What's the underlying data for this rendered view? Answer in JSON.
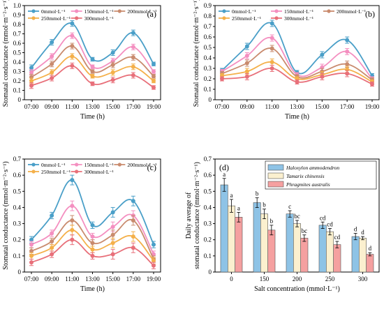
{
  "chart_data": [
    {
      "type": "line",
      "panel_label": "(a)",
      "xlabel": "Time (h)",
      "ylabel": "Stomatal conductance (mmol·m⁻²·s⁻¹)",
      "categories": [
        "07:00",
        "09:00",
        "11:00",
        "13:00",
        "15:00",
        "17:00",
        "19:00"
      ],
      "ylim": [
        0,
        1.0
      ],
      "yticks": [
        "0",
        "0.1",
        "0.2",
        "0.3",
        "0.4",
        "0.5",
        "0.6",
        "0.7",
        "0.8",
        "0.9",
        "1.0"
      ],
      "series": [
        {
          "name": "0mmol·L⁻¹",
          "color": "#4a9fc8",
          "values": [
            0.34,
            0.61,
            0.81,
            0.43,
            0.5,
            0.71,
            0.38
          ]
        },
        {
          "name": "150mmol·L⁻¹",
          "color": "#f48fc0",
          "values": [
            0.29,
            0.46,
            0.68,
            0.35,
            0.41,
            0.56,
            0.3
          ]
        },
        {
          "name": "200mmol·L⁻¹",
          "color": "#c98b6e",
          "values": [
            0.24,
            0.38,
            0.57,
            0.3,
            0.37,
            0.45,
            0.25
          ]
        },
        {
          "name": "250mmol·L⁻¹",
          "color": "#f4b04a",
          "values": [
            0.2,
            0.29,
            0.46,
            0.25,
            0.29,
            0.35,
            0.2
          ]
        },
        {
          "name": "300mmol·L⁻¹",
          "color": "#e8707a",
          "values": [
            0.15,
            0.23,
            0.36,
            0.17,
            0.21,
            0.26,
            0.13
          ]
        }
      ],
      "errors": [
        0.03,
        0.03,
        0.03,
        0.02,
        0.03,
        0.03,
        0.02
      ]
    },
    {
      "type": "line",
      "panel_label": "(b)",
      "xlabel": "Time (h)",
      "ylabel": "Stomatal conductance (mmol·m⁻²·s⁻¹)",
      "categories": [
        "07:00",
        "09:00",
        "11:00",
        "13:00",
        "15:00",
        "17:00",
        "19:00"
      ],
      "ylim": [
        0,
        0.9
      ],
      "yticks": [
        "0",
        "0.1",
        "0.2",
        "0.3",
        "0.4",
        "0.5",
        "0.6",
        "0.7",
        "0.8",
        "0.9"
      ],
      "series": [
        {
          "name": "0mmol·L⁻¹",
          "color": "#4a9fc8",
          "values": [
            0.28,
            0.51,
            0.73,
            0.26,
            0.43,
            0.57,
            0.23
          ]
        },
        {
          "name": "150mmol·L⁻¹",
          "color": "#f48fc0",
          "values": [
            0.27,
            0.42,
            0.59,
            0.24,
            0.31,
            0.46,
            0.2
          ]
        },
        {
          "name": "200mmol·L⁻¹",
          "color": "#c98b6e",
          "values": [
            0.25,
            0.35,
            0.49,
            0.22,
            0.27,
            0.34,
            0.19
          ]
        },
        {
          "name": "250mmol·L⁻¹",
          "color": "#f4b04a",
          "values": [
            0.23,
            0.27,
            0.36,
            0.2,
            0.24,
            0.29,
            0.17
          ]
        },
        {
          "name": "300mmol·L⁻¹",
          "color": "#e8707a",
          "values": [
            0.2,
            0.22,
            0.3,
            0.17,
            0.22,
            0.25,
            0.15
          ]
        }
      ],
      "errors": [
        0.02,
        0.03,
        0.03,
        0.02,
        0.03,
        0.03,
        0.02
      ]
    },
    {
      "type": "line",
      "panel_label": "(c)",
      "xlabel": "Time (h)",
      "ylabel": "Stomatal conductance (mmol·m⁻²·s⁻¹)",
      "categories": [
        "07:00",
        "09:00",
        "11:00",
        "13:00",
        "15:00",
        "17:00",
        "19:00"
      ],
      "ylim": [
        0,
        0.7
      ],
      "yticks": [
        "0",
        "0.1",
        "0.2",
        "0.3",
        "0.4",
        "0.5",
        "0.6",
        "0.7"
      ],
      "series": [
        {
          "name": "0mmol·L⁻¹",
          "color": "#4a9fc8",
          "values": [
            0.2,
            0.35,
            0.57,
            0.29,
            0.37,
            0.44,
            0.17
          ]
        },
        {
          "name": "150mmol·L⁻¹",
          "color": "#f48fc0",
          "values": [
            0.17,
            0.24,
            0.41,
            0.22,
            0.28,
            0.35,
            0.11
          ]
        },
        {
          "name": "200mmol·L⁻¹",
          "color": "#c98b6e",
          "values": [
            0.13,
            0.19,
            0.32,
            0.18,
            0.23,
            0.32,
            0.08
          ]
        },
        {
          "name": "250mmol·L⁻¹",
          "color": "#f4b04a",
          "values": [
            0.1,
            0.15,
            0.26,
            0.14,
            0.18,
            0.22,
            0.07
          ]
        },
        {
          "name": "300mmol·L⁻¹",
          "color": "#e8707a",
          "values": [
            0.06,
            0.11,
            0.2,
            0.1,
            0.11,
            0.15,
            0.04
          ]
        }
      ],
      "errors": [
        0.02,
        0.02,
        0.03,
        0.02,
        0.03,
        0.03,
        0.02
      ]
    },
    {
      "type": "bar",
      "panel_label": "(d)",
      "xlabel": "Salt concentration (mmol·L⁻¹)",
      "ylabel_line1": "Daily average of",
      "ylabel_line2": "stomatal conductance (mmol·m⁻²·s⁻¹)",
      "categories": [
        "0",
        "150",
        "200",
        "250",
        "300"
      ],
      "ylim": [
        0,
        0.7
      ],
      "yticks": [
        "0",
        "0.1",
        "0.2",
        "0.3",
        "0.4",
        "0.5",
        "0.6",
        "0.7"
      ],
      "series": [
        {
          "name": "Haloxylon ammodendron",
          "color": "#8ec3e6",
          "values": [
            0.54,
            0.43,
            0.36,
            0.29,
            0.22
          ],
          "errors": [
            0.04,
            0.03,
            0.02,
            0.02,
            0.02
          ],
          "letters": [
            "a",
            "b",
            "c",
            "cd",
            "d"
          ]
        },
        {
          "name": "Tamarix chinensis",
          "color": "#fbf0cf",
          "values": [
            0.41,
            0.36,
            0.3,
            0.25,
            0.21
          ],
          "errors": [
            0.04,
            0.03,
            0.02,
            0.02,
            0.01
          ],
          "letters": [
            "a",
            "b",
            "bc",
            "cd",
            "d"
          ]
        },
        {
          "name": "Phragmites australis",
          "color": "#f5a0a0",
          "values": [
            0.34,
            0.26,
            0.21,
            0.17,
            0.11
          ],
          "errors": [
            0.03,
            0.03,
            0.02,
            0.02,
            0.01
          ],
          "letters": [
            "a",
            "b",
            "bc",
            "cd",
            "d"
          ]
        }
      ]
    }
  ]
}
